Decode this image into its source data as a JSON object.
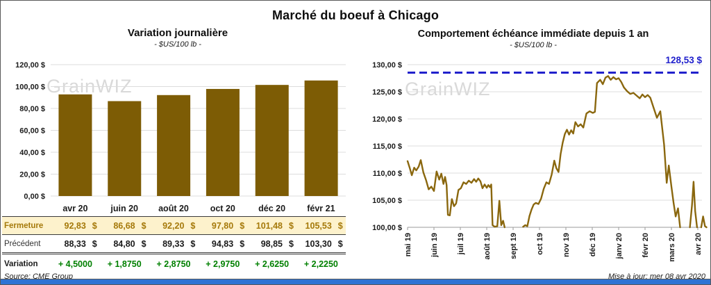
{
  "page": {
    "title": "Marché du boeuf à Chicago",
    "watermark": "GrainWIZ",
    "footer": {
      "source": "Source: CME Group",
      "updated": "Mise à jour: mer 08 avr 2020",
      "strip_color": "#2e73d4"
    }
  },
  "chart_data": [
    {
      "type": "bar",
      "title": "Variation journalière",
      "subtitle": "- $US/100 lb -",
      "categories": [
        "avr 20",
        "juin 20",
        "août 20",
        "oct 20",
        "déc 20",
        "févr 21"
      ],
      "values": [
        92.83,
        86.68,
        92.2,
        97.8,
        101.48,
        105.53
      ],
      "ylim": [
        0,
        120
      ],
      "grid": true,
      "yticks": {
        "values": [
          120,
          100,
          80,
          60,
          40,
          20,
          0
        ],
        "labels": [
          "120,00 $",
          "100,00 $",
          "80,00 $",
          "60,00 $",
          "40,00 $",
          "20,00 $",
          "0,00 $"
        ]
      },
      "colors": {
        "bar": "#7d5c05"
      },
      "table": {
        "currency": "$",
        "rows": [
          {
            "name": "fermeture",
            "label": "Fermeture",
            "values": [
              "92,83",
              "86,68",
              "92,20",
              "97,80",
              "101,48",
              "105,53"
            ],
            "bg": "#fdf2cc",
            "text": "#a5790a"
          },
          {
            "name": "precedent",
            "label": "Précédent",
            "values": [
              "88,33",
              "84,80",
              "89,33",
              "94,83",
              "98,85",
              "103,30"
            ],
            "text": "#1a1a1a"
          },
          {
            "name": "variation",
            "label": "Variation",
            "values": [
              "+ 4,5000",
              "+ 1,8750",
              "+ 2,8750",
              "+ 2,9750",
              "+ 2,6250",
              "+ 2,2250"
            ],
            "text": "#008000"
          }
        ]
      }
    },
    {
      "type": "line",
      "title": "Comportement échéance immédiate depuis 1 an",
      "subtitle": "- $US/100 lb -",
      "x_labels": [
        "mai 19",
        "juin 19",
        "juil 19",
        "août 19",
        "sept 19",
        "oct 19",
        "nov 19",
        "déc 19",
        "janv 20",
        "févr 20",
        "mars 20",
        "avr 20"
      ],
      "x_unit": "months since mai 19 (0 = mai 19, 11 = avr 20); gaps between segments = price below axis floor of 100",
      "ylim": [
        100,
        130
      ],
      "grid": true,
      "yticks": {
        "values": [
          130,
          125,
          120,
          115,
          110,
          105,
          100
        ],
        "labels": [
          "130,00 $",
          "125,00 $",
          "120,00 $",
          "115,00 $",
          "110,00 $",
          "105,00 $",
          "100,00 $"
        ]
      },
      "reference": {
        "value": 128.53,
        "label": "128,53 $",
        "color": "#2121cc",
        "style": "dashed",
        "position": "top-right"
      },
      "color": "#8a670e",
      "segments": [
        [
          [
            0,
            112.2
          ],
          [
            0.08,
            111.0
          ],
          [
            0.16,
            109.6
          ],
          [
            0.25,
            111.0
          ],
          [
            0.33,
            110.5
          ],
          [
            0.42,
            111.2
          ],
          [
            0.5,
            112.4
          ],
          [
            0.6,
            110.1
          ],
          [
            0.7,
            108.7
          ],
          [
            0.8,
            107.0
          ],
          [
            0.9,
            107.5
          ],
          [
            1.0,
            106.7
          ],
          [
            1.1,
            110.3
          ],
          [
            1.2,
            108.8
          ],
          [
            1.28,
            109.9
          ],
          [
            1.36,
            108.0
          ],
          [
            1.42,
            109.3
          ],
          [
            1.48,
            107.8
          ],
          [
            1.53,
            102.3
          ],
          [
            1.6,
            102.2
          ],
          [
            1.68,
            105.2
          ],
          [
            1.76,
            103.9
          ],
          [
            1.84,
            104.4
          ],
          [
            1.93,
            106.9
          ],
          [
            2.02,
            107.2
          ],
          [
            2.12,
            108.3
          ],
          [
            2.22,
            108.0
          ],
          [
            2.32,
            108.6
          ],
          [
            2.42,
            108.2
          ],
          [
            2.52,
            108.9
          ],
          [
            2.6,
            108.4
          ],
          [
            2.68,
            109.0
          ],
          [
            2.76,
            108.5
          ],
          [
            2.84,
            107.2
          ],
          [
            2.92,
            107.9
          ],
          [
            3.0,
            107.3
          ],
          [
            3.06,
            107.8
          ],
          [
            3.12,
            107.4
          ],
          [
            3.17,
            107.9
          ],
          [
            3.22,
            100.4
          ],
          [
            3.3,
            100.1
          ],
          [
            3.4,
            100.2
          ],
          [
            3.48,
            104.9
          ],
          [
            3.55,
            100.4
          ],
          [
            3.62,
            101.2
          ],
          [
            3.68,
            100.0
          ]
        ],
        [
          [
            4.38,
            100.1
          ],
          [
            4.46,
            100.4
          ],
          [
            4.54,
            100.2
          ],
          [
            4.62,
            102.1
          ],
          [
            4.7,
            103.3
          ],
          [
            4.78,
            104.2
          ],
          [
            4.86,
            104.5
          ],
          [
            4.96,
            104.3
          ],
          [
            5.06,
            105.3
          ],
          [
            5.16,
            107.1
          ],
          [
            5.26,
            108.3
          ],
          [
            5.36,
            108.0
          ],
          [
            5.46,
            109.7
          ],
          [
            5.56,
            112.3
          ],
          [
            5.64,
            110.9
          ],
          [
            5.72,
            110.2
          ],
          [
            5.8,
            113.5
          ],
          [
            5.88,
            115.6
          ],
          [
            5.96,
            117.2
          ],
          [
            6.04,
            118.0
          ],
          [
            6.12,
            117.1
          ],
          [
            6.2,
            117.9
          ],
          [
            6.28,
            117.3
          ],
          [
            6.36,
            119.4
          ],
          [
            6.46,
            118.6
          ],
          [
            6.56,
            119.0
          ],
          [
            6.66,
            118.4
          ],
          [
            6.78,
            121.0
          ],
          [
            6.9,
            121.4
          ],
          [
            7.02,
            121.1
          ],
          [
            7.1,
            121.3
          ],
          [
            7.18,
            126.6
          ],
          [
            7.3,
            127.2
          ],
          [
            7.4,
            126.4
          ],
          [
            7.5,
            127.6
          ],
          [
            7.6,
            127.9
          ],
          [
            7.7,
            127.2
          ],
          [
            7.8,
            127.7
          ],
          [
            7.9,
            127.3
          ],
          [
            8.0,
            127.5
          ],
          [
            8.1,
            126.8
          ],
          [
            8.2,
            125.8
          ],
          [
            8.32,
            125.1
          ],
          [
            8.44,
            124.6
          ],
          [
            8.56,
            124.8
          ],
          [
            8.68,
            124.3
          ],
          [
            8.8,
            123.8
          ],
          [
            8.9,
            124.5
          ],
          [
            9.0,
            124.0
          ],
          [
            9.1,
            124.4
          ],
          [
            9.2,
            123.9
          ],
          [
            9.32,
            122.1
          ],
          [
            9.45,
            120.2
          ],
          [
            9.58,
            121.4
          ],
          [
            9.72,
            115.3
          ],
          [
            9.82,
            108.2
          ],
          [
            9.9,
            111.4
          ],
          [
            10.0,
            107.5
          ],
          [
            10.08,
            104.6
          ],
          [
            10.16,
            102.0
          ],
          [
            10.25,
            103.5
          ],
          [
            10.33,
            100.0
          ]
        ],
        [
          [
            10.7,
            100.0
          ],
          [
            10.78,
            104.0
          ],
          [
            10.84,
            108.4
          ],
          [
            10.9,
            103.0
          ],
          [
            10.97,
            100.0
          ]
        ],
        [
          [
            11.13,
            100.0
          ],
          [
            11.2,
            102.0
          ],
          [
            11.27,
            100.2
          ],
          [
            11.33,
            100.0
          ]
        ]
      ]
    }
  ]
}
